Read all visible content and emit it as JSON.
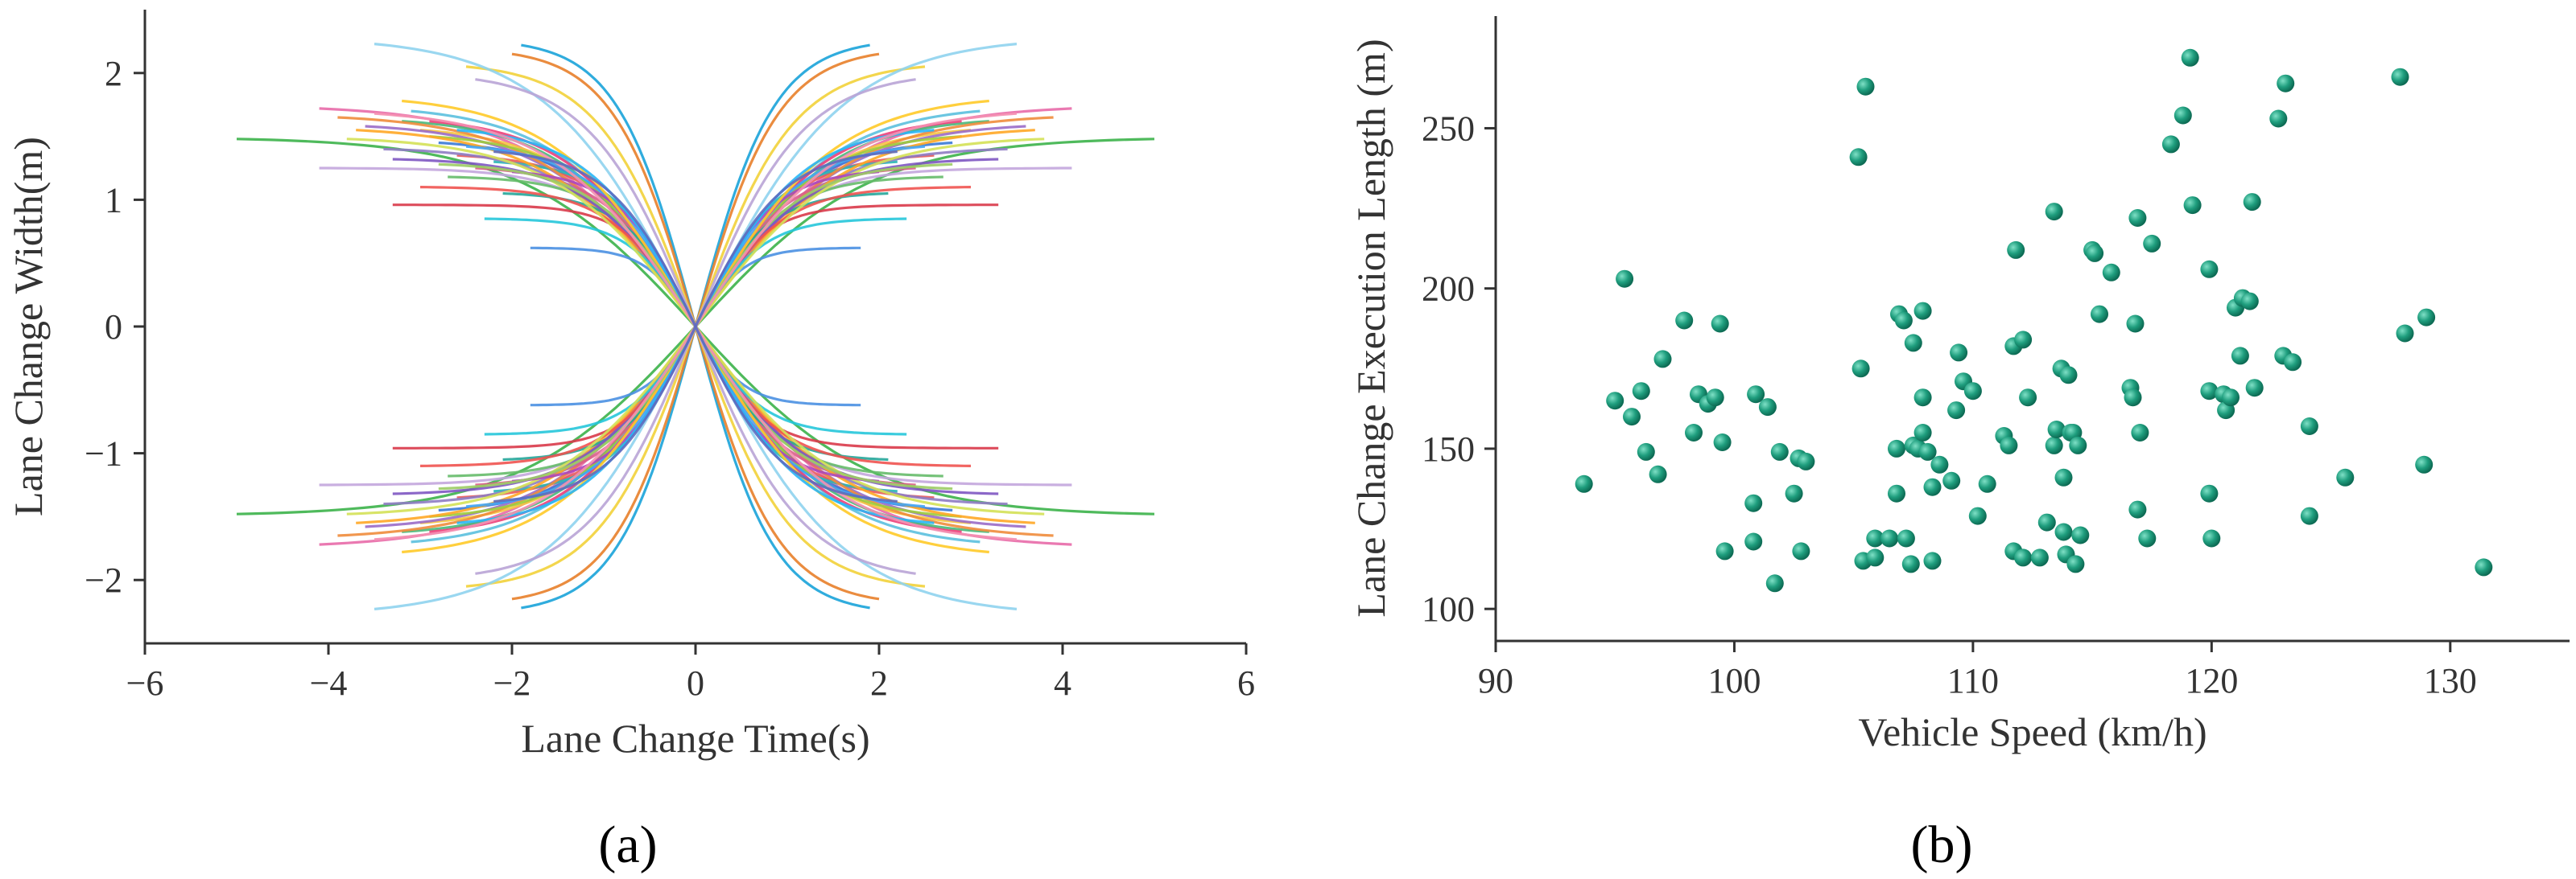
{
  "chart_data": [
    {
      "type": "line",
      "panel_label": "(a)",
      "title": "",
      "xlabel": "Lane Change Time(s)",
      "ylabel": "Lane Change Width(m)",
      "xlim": [
        -6,
        6
      ],
      "ylim": [
        -2.5,
        2.5
      ],
      "xticks": [
        -6,
        -4,
        -2,
        0,
        2,
        4,
        6
      ],
      "xtick_labels": [
        "−6",
        "−4",
        "−2",
        "0",
        "2",
        "4",
        "6"
      ],
      "yticks": [
        -2,
        -1,
        0,
        1,
        2
      ],
      "ytick_labels": [
        "−2",
        "−1",
        "0",
        "1",
        "2"
      ],
      "grid": false,
      "description": "Mirrored lane-change trajectories through origin; each series: w(t) = width * tanh(|t|/k) with sign per quadrant",
      "series": [
        {
          "t_end": 1.9,
          "width": 2.22,
          "k": 0.85,
          "color": "#1aa3d9"
        },
        {
          "t_end": 2.0,
          "width": 2.15,
          "k": 0.9,
          "color": "#e8802a"
        },
        {
          "t_end": 2.5,
          "width": 2.05,
          "k": 1.05,
          "color": "#f2d23a"
        },
        {
          "t_end": 3.5,
          "width": 2.23,
          "k": 1.6,
          "color": "#8fd3ee"
        },
        {
          "t_end": 2.4,
          "width": 1.95,
          "k": 1.15,
          "color": "#b9a4d6"
        },
        {
          "t_end": 5.0,
          "width": 1.48,
          "k": 1.9,
          "color": "#3cb34a"
        },
        {
          "t_end": 4.1,
          "width": 1.72,
          "k": 1.7,
          "color": "#e86aa8"
        },
        {
          "t_end": 4.1,
          "width": 1.25,
          "k": 1.1,
          "color": "#c3a6dd"
        },
        {
          "t_end": 3.3,
          "width": 0.96,
          "k": 0.75,
          "color": "#d93a4a"
        },
        {
          "t_end": 3.0,
          "width": 1.55,
          "k": 1.35,
          "color": "#f4c542"
        },
        {
          "t_end": 2.8,
          "width": 1.45,
          "k": 1.2,
          "color": "#3a7ad6"
        },
        {
          "t_end": 3.2,
          "width": 1.62,
          "k": 1.4,
          "color": "#49b87a"
        },
        {
          "t_end": 2.6,
          "width": 1.35,
          "k": 1.05,
          "color": "#e85a5a"
        },
        {
          "t_end": 3.6,
          "width": 1.58,
          "k": 1.55,
          "color": "#9a6cc8"
        },
        {
          "t_end": 2.2,
          "width": 1.3,
          "k": 0.9,
          "color": "#2ab5b5"
        },
        {
          "t_end": 3.9,
          "width": 1.65,
          "k": 1.65,
          "color": "#f08c3c"
        },
        {
          "t_end": 1.8,
          "width": 0.62,
          "k": 0.55,
          "color": "#4a90e2"
        },
        {
          "t_end": 2.9,
          "width": 1.5,
          "k": 1.25,
          "color": "#9ccc3c"
        },
        {
          "t_end": 3.1,
          "width": 1.7,
          "k": 1.45,
          "color": "#5bc0de"
        },
        {
          "t_end": 2.4,
          "width": 1.25,
          "k": 1.0,
          "color": "#d95f8a"
        },
        {
          "t_end": 3.4,
          "width": 1.4,
          "k": 1.3,
          "color": "#8e7cc3"
        },
        {
          "t_end": 2.7,
          "width": 1.18,
          "k": 0.95,
          "color": "#66bb6a"
        },
        {
          "t_end": 3.7,
          "width": 1.55,
          "k": 1.6,
          "color": "#ffa726"
        },
        {
          "t_end": 2.1,
          "width": 1.05,
          "k": 0.8,
          "color": "#26a69a"
        },
        {
          "t_end": 2.9,
          "width": 1.62,
          "k": 1.35,
          "color": "#ec407a"
        },
        {
          "t_end": 3.3,
          "width": 1.32,
          "k": 1.2,
          "color": "#7e57c2"
        },
        {
          "t_end": 2.5,
          "width": 1.42,
          "k": 1.1,
          "color": "#42a5f5"
        },
        {
          "t_end": 3.0,
          "width": 1.1,
          "k": 0.95,
          "color": "#ef5350"
        },
        {
          "t_end": 2.3,
          "width": 0.85,
          "k": 0.75,
          "color": "#26c6da"
        },
        {
          "t_end": 3.8,
          "width": 1.48,
          "k": 1.55,
          "color": "#d4e157"
        },
        {
          "t_end": 2.0,
          "width": 1.22,
          "k": 0.85,
          "color": "#ab47bc"
        },
        {
          "t_end": 3.2,
          "width": 1.78,
          "k": 1.5,
          "color": "#ffca28"
        },
        {
          "t_end": 2.6,
          "width": 1.55,
          "k": 1.15,
          "color": "#29b6f6"
        },
        {
          "t_end": 2.8,
          "width": 1.28,
          "k": 1.1,
          "color": "#9ccc65"
        },
        {
          "t_end": 3.5,
          "width": 1.68,
          "k": 1.55,
          "color": "#f48fb1"
        },
        {
          "t_end": 2.2,
          "width": 1.38,
          "k": 0.95,
          "color": "#5c6bc0"
        }
      ]
    },
    {
      "type": "scatter",
      "panel_label": "(b)",
      "title": "",
      "xlabel": "Vehicle Speed (km/h)",
      "ylabel": "Lane Change Execution Length (m)",
      "xlim": [
        90,
        135
      ],
      "ylim": [
        90,
        285
      ],
      "xticks": [
        90,
        100,
        110,
        120,
        130
      ],
      "xtick_labels": [
        "90",
        "100",
        "110",
        "120",
        "130"
      ],
      "yticks": [
        100,
        150,
        200,
        250
      ],
      "ytick_labels": [
        "100",
        "150",
        "200",
        "250"
      ],
      "grid": false,
      "marker_color": "#1f9e7e",
      "points": [
        [
          93.7,
          139
        ],
        [
          95.0,
          165
        ],
        [
          95.4,
          203
        ],
        [
          95.7,
          160
        ],
        [
          96.1,
          168
        ],
        [
          96.3,
          149
        ],
        [
          96.8,
          142
        ],
        [
          97.0,
          178
        ],
        [
          97.9,
          190
        ],
        [
          98.3,
          155
        ],
        [
          98.5,
          167
        ],
        [
          98.9,
          164
        ],
        [
          99.2,
          166
        ],
        [
          99.4,
          189
        ],
        [
          99.5,
          152
        ],
        [
          99.6,
          118
        ],
        [
          100.8,
          133
        ],
        [
          100.8,
          121
        ],
        [
          100.9,
          167
        ],
        [
          101.4,
          163
        ],
        [
          101.7,
          108
        ],
        [
          101.9,
          149
        ],
        [
          102.5,
          136
        ],
        [
          102.7,
          147
        ],
        [
          102.8,
          118
        ],
        [
          103.0,
          146
        ],
        [
          105.2,
          241
        ],
        [
          105.3,
          175
        ],
        [
          105.4,
          115
        ],
        [
          105.5,
          263
        ],
        [
          105.9,
          116
        ],
        [
          105.9,
          122
        ],
        [
          106.5,
          122
        ],
        [
          106.8,
          136
        ],
        [
          106.8,
          150
        ],
        [
          106.9,
          192
        ],
        [
          107.1,
          190
        ],
        [
          107.2,
          122
        ],
        [
          107.4,
          114
        ],
        [
          107.5,
          183
        ],
        [
          107.5,
          151
        ],
        [
          107.7,
          150
        ],
        [
          107.9,
          166
        ],
        [
          107.9,
          193
        ],
        [
          107.9,
          155
        ],
        [
          108.1,
          149
        ],
        [
          108.3,
          138
        ],
        [
          108.3,
          115
        ],
        [
          108.6,
          145
        ],
        [
          109.1,
          140
        ],
        [
          109.3,
          162
        ],
        [
          109.4,
          180
        ],
        [
          109.6,
          171
        ],
        [
          110.0,
          168
        ],
        [
          110.2,
          129
        ],
        [
          110.6,
          139
        ],
        [
          111.3,
          154
        ],
        [
          111.5,
          151
        ],
        [
          111.7,
          118
        ],
        [
          111.7,
          182
        ],
        [
          111.8,
          212
        ],
        [
          112.1,
          116
        ],
        [
          112.1,
          184
        ],
        [
          112.3,
          166
        ],
        [
          112.8,
          116
        ],
        [
          113.1,
          127
        ],
        [
          113.4,
          224
        ],
        [
          113.4,
          151
        ],
        [
          113.5,
          156
        ],
        [
          113.7,
          175
        ],
        [
          113.8,
          141
        ],
        [
          113.8,
          124
        ],
        [
          113.9,
          117
        ],
        [
          114.0,
          173
        ],
        [
          114.1,
          155
        ],
        [
          114.2,
          155
        ],
        [
          114.3,
          114
        ],
        [
          114.4,
          151
        ],
        [
          114.5,
          123
        ],
        [
          115.0,
          212
        ],
        [
          115.1,
          211
        ],
        [
          115.3,
          192
        ],
        [
          115.8,
          205
        ],
        [
          116.6,
          169
        ],
        [
          116.7,
          166
        ],
        [
          116.8,
          189
        ],
        [
          116.9,
          222
        ],
        [
          116.9,
          131
        ],
        [
          117.0,
          155
        ],
        [
          117.3,
          122
        ],
        [
          117.5,
          214
        ],
        [
          118.3,
          245
        ],
        [
          118.8,
          254
        ],
        [
          119.1,
          272
        ],
        [
          119.2,
          226
        ],
        [
          119.9,
          206
        ],
        [
          119.9,
          168
        ],
        [
          119.9,
          136
        ],
        [
          120.0,
          122
        ],
        [
          120.5,
          167
        ],
        [
          120.6,
          162
        ],
        [
          120.8,
          166
        ],
        [
          121.0,
          194
        ],
        [
          121.2,
          179
        ],
        [
          121.3,
          197
        ],
        [
          121.6,
          196
        ],
        [
          121.7,
          227
        ],
        [
          121.8,
          169
        ],
        [
          122.8,
          253
        ],
        [
          123.0,
          179
        ],
        [
          123.1,
          264
        ],
        [
          123.4,
          177
        ],
        [
          124.1,
          157
        ],
        [
          124.1,
          129
        ],
        [
          125.6,
          141
        ],
        [
          127.9,
          266
        ],
        [
          128.1,
          186
        ],
        [
          128.9,
          145
        ],
        [
          129.0,
          191
        ],
        [
          131.4,
          113
        ]
      ]
    }
  ]
}
